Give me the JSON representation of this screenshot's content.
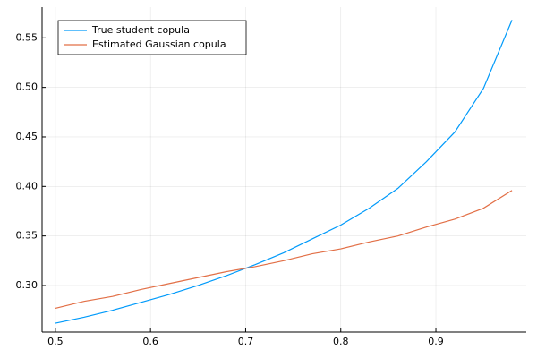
{
  "chart_data": {
    "type": "line",
    "x": [
      0.5,
      0.53,
      0.56,
      0.59,
      0.62,
      0.65,
      0.68,
      0.71,
      0.74,
      0.77,
      0.8,
      0.83,
      0.86,
      0.89,
      0.92,
      0.95,
      0.98
    ],
    "series": [
      {
        "name": "True student copula",
        "color": "#009afa",
        "values": [
          0.262,
          0.268,
          0.275,
          0.283,
          0.291,
          0.3,
          0.31,
          0.321,
          0.333,
          0.347,
          0.361,
          0.378,
          0.398,
          0.425,
          0.455,
          0.499,
          0.568
        ]
      },
      {
        "name": "Estimated Gaussian copula",
        "color": "#e26f46",
        "values": [
          0.277,
          0.284,
          0.289,
          0.296,
          0.302,
          0.308,
          0.314,
          0.319,
          0.325,
          0.332,
          0.337,
          0.344,
          0.35,
          0.359,
          0.367,
          0.378,
          0.396
        ]
      }
    ],
    "xlim": [
      0.486,
      0.995
    ],
    "ylim": [
      0.253,
      0.581
    ],
    "xticks": [
      0.5,
      0.6,
      0.7,
      0.8,
      0.9
    ],
    "yticks": [
      {
        "value": 0.3,
        "label": "0.30"
      },
      0.35,
      {
        "value": 0.4,
        "label": "0.40"
      },
      0.45,
      {
        "value": 0.5,
        "label": "0.50"
      },
      0.55
    ],
    "grid": true,
    "legend": "top-left"
  }
}
